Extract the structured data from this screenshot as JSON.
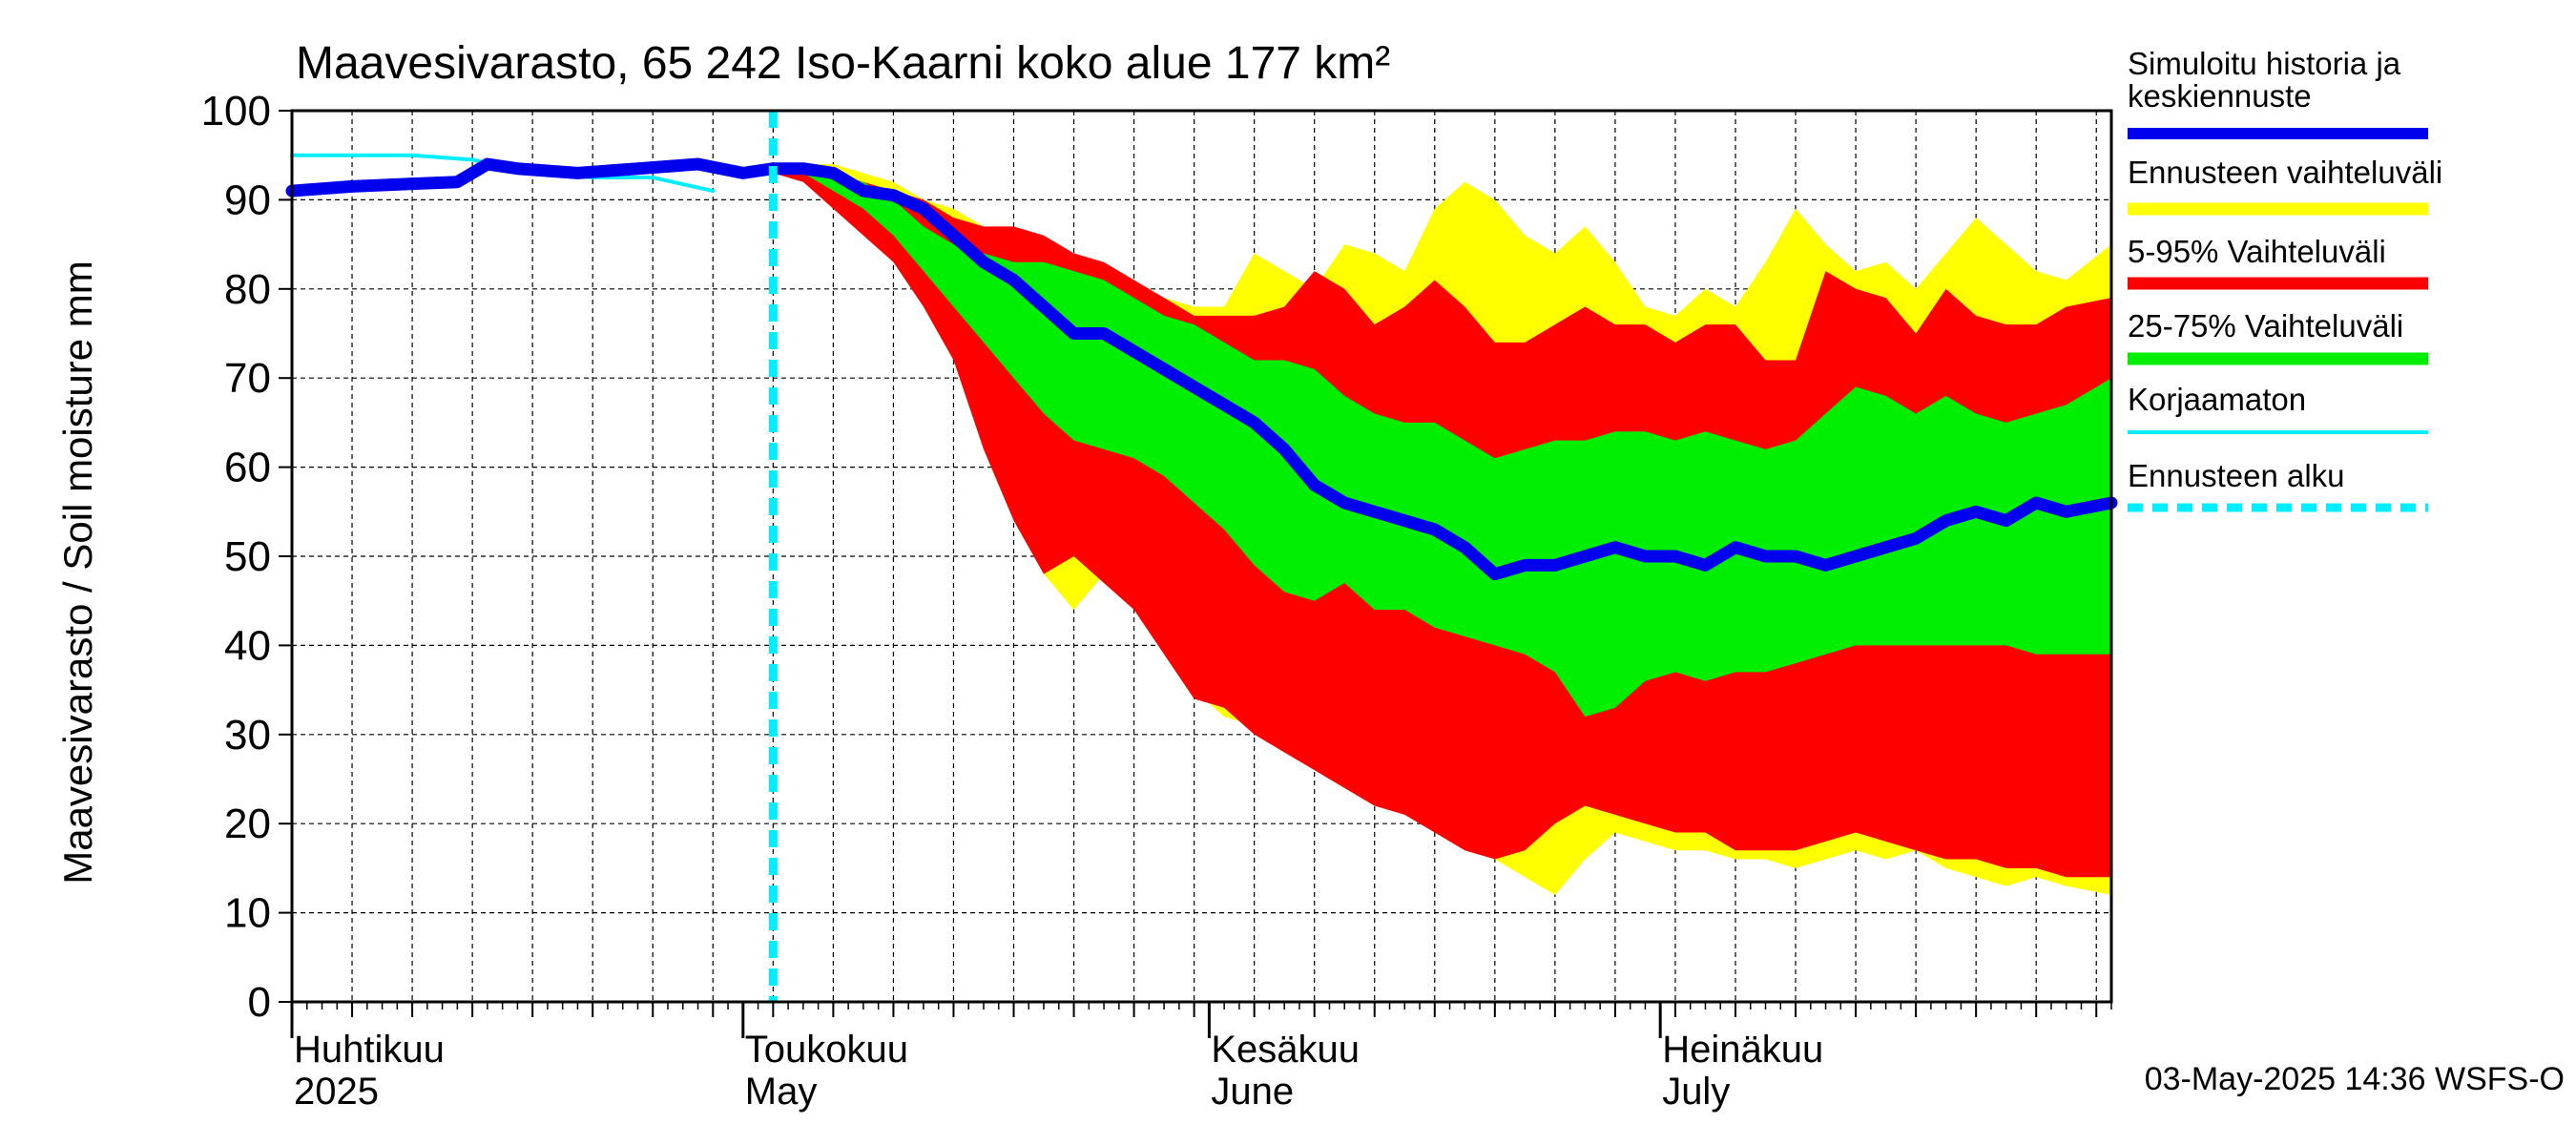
{
  "chart_data": {
    "type": "area",
    "title": "Maavesivarasto, 65 242 Iso-Kaarni koko alue 177 km²",
    "ylabel": "Maavesivarasto / Soil moisture   mm",
    "ylim": [
      0,
      100
    ],
    "yticks": [
      0,
      10,
      20,
      30,
      40,
      50,
      60,
      70,
      80,
      90,
      100
    ],
    "x_range": [
      "2025-04-01",
      "2025-07-31"
    ],
    "forecast_start": "2025-05-03",
    "grid": true,
    "legend_position": "right",
    "x_labels": [
      {
        "date": "2025-04-01",
        "line1": "Huhtikuu",
        "line2": "2025"
      },
      {
        "date": "2025-05-01",
        "line1": "Toukokuu",
        "line2": "May"
      },
      {
        "date": "2025-06-01",
        "line1": "Kesäkuu",
        "line2": "June"
      },
      {
        "date": "2025-07-01",
        "line1": "Heinäkuu",
        "line2": "July"
      }
    ],
    "footer": "03-May-2025 14:36 WSFS-O",
    "legend": [
      {
        "label": "Simuloitu historia ja keskiennuste",
        "color": "#0000ee",
        "style": "thick"
      },
      {
        "label": "Ennusteen vaihteluväli",
        "color": "#ffff00",
        "style": "band"
      },
      {
        "label": "5-95% Vaihteluväli",
        "color": "#ff0000",
        "style": "band"
      },
      {
        "label": "25-75% Vaihteluväli",
        "color": "#00ee00",
        "style": "band"
      },
      {
        "label": "Korjaamaton",
        "color": "#00eeff",
        "style": "thin"
      },
      {
        "label": "Ennusteen alku",
        "color": "#00eeff",
        "style": "dashed"
      }
    ],
    "series": [
      {
        "name": "Ennusteen vaihteluväli",
        "color": "#ffff00",
        "x": [
          "2025-05-03",
          "2025-05-05",
          "2025-05-07",
          "2025-05-09",
          "2025-05-11",
          "2025-05-13",
          "2025-05-15",
          "2025-05-17",
          "2025-05-19",
          "2025-05-21",
          "2025-05-23",
          "2025-05-25",
          "2025-05-27",
          "2025-05-29",
          "2025-05-31",
          "2025-06-02",
          "2025-06-04",
          "2025-06-06",
          "2025-06-08",
          "2025-06-10",
          "2025-06-12",
          "2025-06-14",
          "2025-06-16",
          "2025-06-18",
          "2025-06-20",
          "2025-06-22",
          "2025-06-24",
          "2025-06-26",
          "2025-06-28",
          "2025-06-30",
          "2025-07-02",
          "2025-07-04",
          "2025-07-06",
          "2025-07-08",
          "2025-07-10",
          "2025-07-12",
          "2025-07-14",
          "2025-07-16",
          "2025-07-18",
          "2025-07-20",
          "2025-07-22",
          "2025-07-24",
          "2025-07-26",
          "2025-07-28",
          "2025-07-31"
        ],
        "upper": [
          93,
          94,
          94,
          93,
          92,
          90,
          89,
          87,
          85,
          84,
          83,
          82,
          80,
          79,
          78,
          78,
          84,
          82,
          80,
          85,
          84,
          82,
          89,
          92,
          90,
          86,
          84,
          87,
          83,
          78,
          77,
          80,
          78,
          83,
          89,
          85,
          82,
          83,
          80,
          84,
          88,
          85,
          82,
          81,
          85
        ],
        "lower": [
          93,
          93,
          91,
          88,
          85,
          80,
          75,
          67,
          58,
          48,
          44,
          48,
          44,
          40,
          35,
          32,
          31,
          30,
          28,
          26,
          24,
          22,
          20,
          18,
          16,
          14,
          12,
          16,
          19,
          18,
          17,
          17,
          16,
          16,
          15,
          16,
          17,
          16,
          17,
          15,
          14,
          13,
          14,
          13,
          12
        ]
      },
      {
        "name": "5-95% Vaihteluväli",
        "color": "#ff0000",
        "x": [
          "2025-05-03",
          "2025-05-05",
          "2025-05-07",
          "2025-05-09",
          "2025-05-11",
          "2025-05-13",
          "2025-05-15",
          "2025-05-17",
          "2025-05-19",
          "2025-05-21",
          "2025-05-23",
          "2025-05-25",
          "2025-05-27",
          "2025-05-29",
          "2025-05-31",
          "2025-06-02",
          "2025-06-04",
          "2025-06-06",
          "2025-06-08",
          "2025-06-10",
          "2025-06-12",
          "2025-06-14",
          "2025-06-16",
          "2025-06-18",
          "2025-06-20",
          "2025-06-22",
          "2025-06-24",
          "2025-06-26",
          "2025-06-28",
          "2025-06-30",
          "2025-07-02",
          "2025-07-04",
          "2025-07-06",
          "2025-07-08",
          "2025-07-10",
          "2025-07-12",
          "2025-07-14",
          "2025-07-16",
          "2025-07-18",
          "2025-07-20",
          "2025-07-22",
          "2025-07-24",
          "2025-07-26",
          "2025-07-28",
          "2025-07-31"
        ],
        "upper": [
          93,
          93,
          93,
          92,
          91,
          90,
          88,
          87,
          87,
          86,
          84,
          83,
          81,
          79,
          77,
          77,
          77,
          78,
          82,
          80,
          76,
          78,
          81,
          78,
          74,
          74,
          76,
          78,
          76,
          76,
          74,
          76,
          76,
          72,
          72,
          82,
          80,
          79,
          75,
          80,
          77,
          76,
          76,
          78,
          79
        ],
        "lower": [
          93,
          92,
          89,
          86,
          83,
          78,
          72,
          62,
          54,
          48,
          50,
          47,
          44,
          39,
          34,
          33,
          30,
          28,
          26,
          24,
          22,
          21,
          19,
          17,
          16,
          17,
          20,
          22,
          21,
          20,
          19,
          19,
          17,
          17,
          17,
          18,
          19,
          18,
          17,
          16,
          16,
          15,
          15,
          14,
          14
        ]
      },
      {
        "name": "25-75% Vaihteluväli",
        "color": "#00ee00",
        "x": [
          "2025-05-03",
          "2025-05-05",
          "2025-05-07",
          "2025-05-09",
          "2025-05-11",
          "2025-05-13",
          "2025-05-15",
          "2025-05-17",
          "2025-05-19",
          "2025-05-21",
          "2025-05-23",
          "2025-05-25",
          "2025-05-27",
          "2025-05-29",
          "2025-05-31",
          "2025-06-02",
          "2025-06-04",
          "2025-06-06",
          "2025-06-08",
          "2025-06-10",
          "2025-06-12",
          "2025-06-14",
          "2025-06-16",
          "2025-06-18",
          "2025-06-20",
          "2025-06-22",
          "2025-06-24",
          "2025-06-26",
          "2025-06-28",
          "2025-06-30",
          "2025-07-02",
          "2025-07-04",
          "2025-07-06",
          "2025-07-08",
          "2025-07-10",
          "2025-07-12",
          "2025-07-14",
          "2025-07-16",
          "2025-07-18",
          "2025-07-20",
          "2025-07-22",
          "2025-07-24",
          "2025-07-26",
          "2025-07-28",
          "2025-07-31"
        ],
        "upper": [
          93,
          93,
          93,
          92,
          90,
          87,
          85,
          84,
          83,
          83,
          82,
          81,
          79,
          77,
          76,
          74,
          72,
          72,
          71,
          68,
          66,
          65,
          65,
          63,
          61,
          62,
          63,
          63,
          64,
          64,
          63,
          64,
          63,
          62,
          63,
          66,
          69,
          68,
          66,
          68,
          66,
          65,
          66,
          67,
          70
        ],
        "lower": [
          93,
          93,
          91,
          89,
          86,
          82,
          78,
          74,
          70,
          66,
          63,
          62,
          61,
          59,
          56,
          53,
          49,
          46,
          45,
          47,
          44,
          44,
          42,
          41,
          40,
          39,
          37,
          32,
          33,
          36,
          37,
          36,
          37,
          37,
          38,
          39,
          40,
          40,
          40,
          40,
          40,
          40,
          39,
          39,
          39
        ]
      },
      {
        "name": "Simuloitu historia ja keskiennuste",
        "color": "#0000ee",
        "x": [
          "2025-04-01",
          "2025-04-05",
          "2025-04-09",
          "2025-04-12",
          "2025-04-14",
          "2025-04-16",
          "2025-04-20",
          "2025-04-24",
          "2025-04-28",
          "2025-05-01",
          "2025-05-03",
          "2025-05-05",
          "2025-05-07",
          "2025-05-09",
          "2025-05-11",
          "2025-05-13",
          "2025-05-15",
          "2025-05-17",
          "2025-05-19",
          "2025-05-21",
          "2025-05-23",
          "2025-05-25",
          "2025-05-27",
          "2025-05-29",
          "2025-05-31",
          "2025-06-02",
          "2025-06-04",
          "2025-06-06",
          "2025-06-08",
          "2025-06-10",
          "2025-06-12",
          "2025-06-14",
          "2025-06-16",
          "2025-06-18",
          "2025-06-20",
          "2025-06-22",
          "2025-06-24",
          "2025-06-26",
          "2025-06-28",
          "2025-06-30",
          "2025-07-02",
          "2025-07-04",
          "2025-07-06",
          "2025-07-08",
          "2025-07-10",
          "2025-07-12",
          "2025-07-14",
          "2025-07-16",
          "2025-07-18",
          "2025-07-20",
          "2025-07-22",
          "2025-07-24",
          "2025-07-26",
          "2025-07-28",
          "2025-07-31"
        ],
        "values": [
          91,
          91.5,
          91.8,
          92,
          94,
          93.5,
          93,
          93.5,
          94,
          93,
          93.5,
          93.5,
          93,
          91,
          90.5,
          89,
          86,
          83,
          81,
          78,
          75,
          75,
          73,
          71,
          69,
          67,
          65,
          62,
          58,
          56,
          55,
          54,
          53,
          51,
          48,
          49,
          49,
          50,
          51,
          50,
          50,
          49,
          51,
          50,
          50,
          49,
          50,
          51,
          52,
          54,
          55,
          54,
          56,
          55,
          56
        ]
      },
      {
        "name": "Korjaamaton",
        "color": "#00eeff",
        "x": [
          "2025-04-01",
          "2025-04-05",
          "2025-04-09",
          "2025-04-13",
          "2025-04-17",
          "2025-04-21",
          "2025-04-25",
          "2025-04-29"
        ],
        "values": [
          95,
          95,
          95,
          94.5,
          93,
          92.5,
          92.5,
          91
        ]
      }
    ]
  }
}
